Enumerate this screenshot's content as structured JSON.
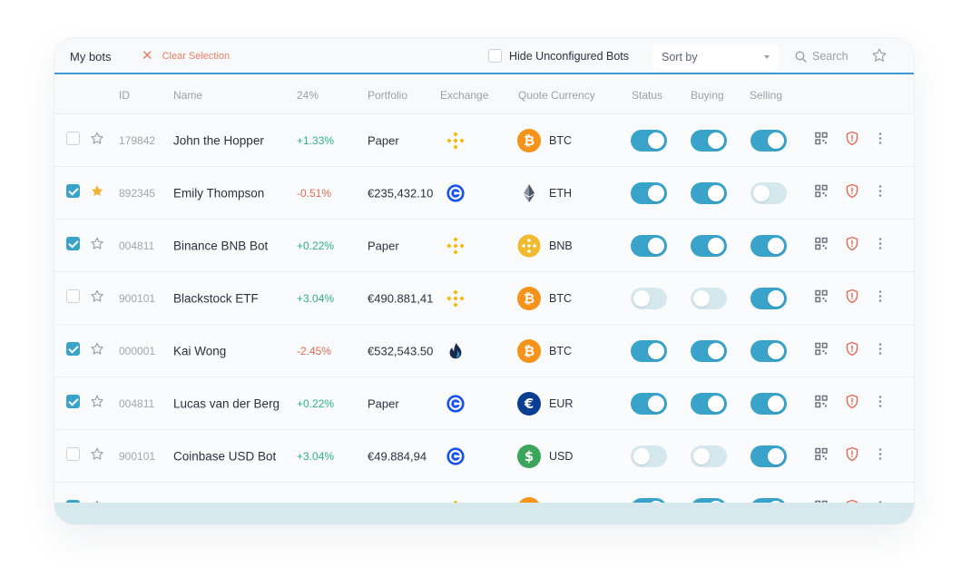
{
  "toolbar": {
    "title": "My bots",
    "clear_selection": "Clear Selection",
    "hide_unconfigured": "Hide Unconfigured Bots",
    "hide_unconfigured_checked": false,
    "sort_by": "Sort by",
    "search_placeholder": "Search"
  },
  "columns": {
    "id": "ID",
    "name": "Name",
    "pct": "24%",
    "portfolio": "Portfolio",
    "exchange": "Exchange",
    "quote": "Quote Currency",
    "status": "Status",
    "buying": "Buying",
    "selling": "Selling"
  },
  "colors": {
    "accent": "#3aa3c9",
    "positive": "#2fb08a",
    "negative": "#e06a58",
    "binance": "#f0b90b",
    "coinbase": "#1652f0",
    "btc": "#f7931a",
    "eth": "#627eea",
    "bnb": "#f3ba2f",
    "eur": "#0b3e91",
    "usd": "#3ba55c"
  },
  "rows": [
    {
      "checked": false,
      "starred": false,
      "id": "179842",
      "name": "John the Hopper",
      "pct": "+1.33%",
      "pct_dir": "pos",
      "portfolio": "Paper",
      "exchange": "binance-icon",
      "coin": "btc-icon",
      "currency": "BTC",
      "status": true,
      "buying": true,
      "selling": true
    },
    {
      "checked": true,
      "starred": true,
      "id": "892345",
      "name": "Emily Thompson",
      "pct": "-0.51%",
      "pct_dir": "neg",
      "portfolio": "€235,432.10",
      "exchange": "coinbase-icon",
      "coin": "eth-icon",
      "currency": "ETH",
      "status": true,
      "buying": true,
      "selling": false
    },
    {
      "checked": true,
      "starred": false,
      "id": "004811",
      "name": "Binance BNB Bot",
      "pct": "+0.22%",
      "pct_dir": "pos",
      "portfolio": "Paper",
      "exchange": "binance-icon",
      "coin": "bnb-icon",
      "currency": "BNB",
      "status": true,
      "buying": true,
      "selling": true
    },
    {
      "checked": false,
      "starred": false,
      "id": "900101",
      "name": "Blackstock ETF",
      "pct": "+3.04%",
      "pct_dir": "pos",
      "portfolio": "€490.881,41",
      "exchange": "binance-icon",
      "coin": "btc-icon",
      "currency": "BTC",
      "status": false,
      "buying": false,
      "selling": true
    },
    {
      "checked": true,
      "starred": false,
      "id": "000001",
      "name": "Kai Wong",
      "pct": "-2.45%",
      "pct_dir": "neg",
      "portfolio": "€532,543.50",
      "exchange": "huobi-icon",
      "coin": "btc-icon",
      "currency": "BTC",
      "status": true,
      "buying": true,
      "selling": true
    },
    {
      "checked": true,
      "starred": false,
      "id": "004811",
      "name": "Lucas van der Berg",
      "pct": "+0.22%",
      "pct_dir": "pos",
      "portfolio": "Paper",
      "exchange": "coinbase-icon",
      "coin": "eur-icon",
      "currency": "EUR",
      "status": true,
      "buying": true,
      "selling": true
    },
    {
      "checked": false,
      "starred": false,
      "id": "900101",
      "name": "Coinbase USD Bot",
      "pct": "+3.04%",
      "pct_dir": "pos",
      "portfolio": "€49.884,94",
      "exchange": "coinbase-icon",
      "coin": "usd-icon",
      "currency": "USD",
      "status": false,
      "buying": false,
      "selling": true
    },
    {
      "checked": true,
      "starred": false,
      "id": "",
      "name": "",
      "pct": "",
      "pct_dir": "pos",
      "portfolio": "",
      "exchange": "binance-icon",
      "coin": "btc-icon",
      "currency": "",
      "status": true,
      "buying": true,
      "selling": true
    }
  ]
}
